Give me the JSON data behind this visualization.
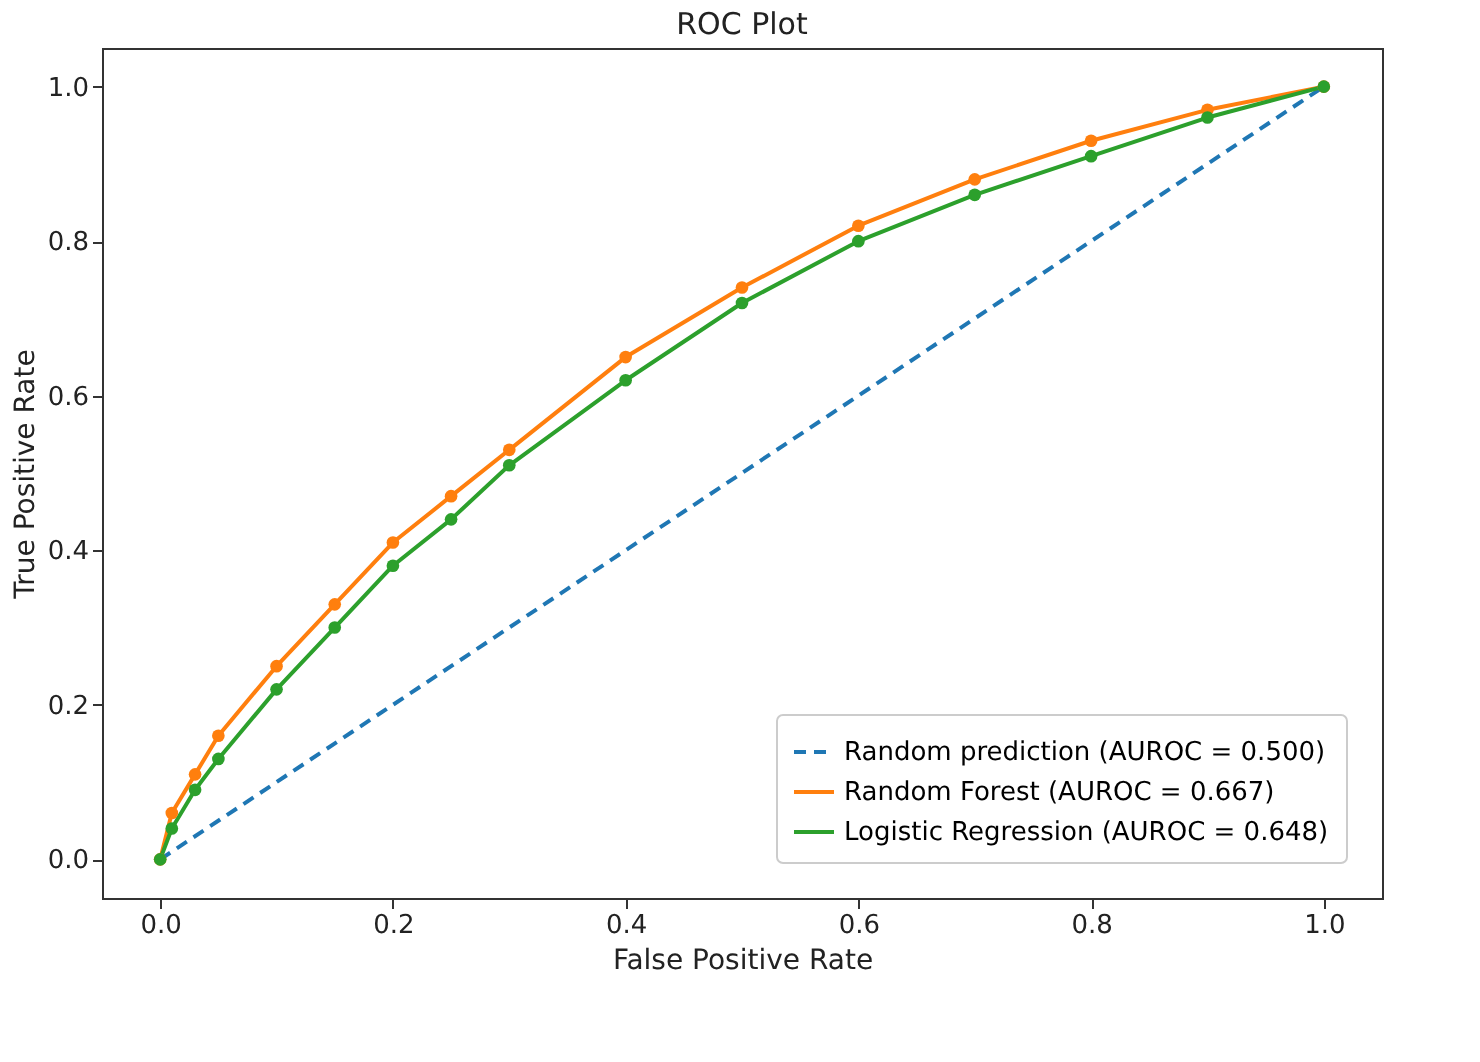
{
  "chart_data": {
    "type": "line",
    "title": "ROC Plot",
    "xlabel": "False Positive Rate",
    "ylabel": "True Positive Rate",
    "xlim": [
      -0.05,
      1.05
    ],
    "ylim": [
      -0.05,
      1.05
    ],
    "xticks": [
      {
        "value": 0,
        "label": "0.0"
      },
      0.2,
      0.4,
      0.6,
      0.8,
      {
        "value": 1,
        "label": "1.0"
      }
    ],
    "yticks": [
      {
        "value": 0,
        "label": "0.0"
      },
      0.2,
      0.4,
      0.6,
      0.8,
      {
        "value": 1,
        "label": "1.0"
      }
    ],
    "grid": false,
    "legend": "bottom right",
    "series": [
      {
        "name": "Random prediction (AUROC = 0.500)",
        "color": "#1f77b4",
        "line_style": "dashed",
        "marker": "none",
        "x": [
          0,
          1
        ],
        "values": [
          0,
          1
        ]
      },
      {
        "name": "Random Forest (AUROC = 0.667)",
        "color": "#ff7f0e",
        "line_style": "solid",
        "marker": "circle",
        "x": [
          0,
          0.01,
          0.03,
          0.05,
          0.1,
          0.15,
          0.2,
          0.25,
          0.3,
          0.4,
          0.5,
          0.6,
          0.7,
          0.8,
          0.9,
          1.0
        ],
        "values": [
          0,
          0.06,
          0.11,
          0.16,
          0.25,
          0.33,
          0.41,
          0.47,
          0.53,
          0.65,
          0.74,
          0.82,
          0.88,
          0.93,
          0.97,
          1.0
        ]
      },
      {
        "name": "Logistic Regression (AUROC = 0.648)",
        "color": "#2ca02c",
        "line_style": "solid",
        "marker": "circle",
        "x": [
          0,
          0.01,
          0.03,
          0.05,
          0.1,
          0.15,
          0.2,
          0.25,
          0.3,
          0.4,
          0.5,
          0.6,
          0.7,
          0.8,
          0.9,
          1.0
        ],
        "values": [
          0,
          0.04,
          0.09,
          0.13,
          0.22,
          0.3,
          0.38,
          0.44,
          0.51,
          0.62,
          0.72,
          0.8,
          0.86,
          0.91,
          0.96,
          1.0
        ]
      }
    ]
  }
}
